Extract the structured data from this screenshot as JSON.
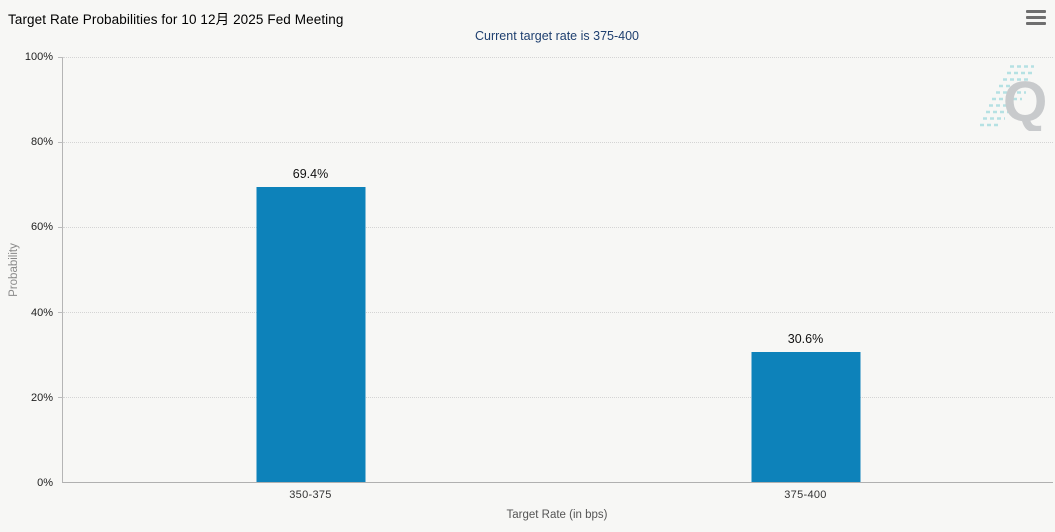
{
  "header": {
    "title": "Target Rate Probabilities for 10 12月 2025 Fed Meeting",
    "subtitle": "Current target rate is 375-400",
    "menu_icon": "hamburger-menu-icon"
  },
  "watermark": {
    "letter": "Q"
  },
  "colors": {
    "background": "#f7f7f5",
    "bar": "#0d82ba",
    "subtitle_text": "#1e3f6f",
    "gridline": "#d4d4d4",
    "axis_line": "#b5b5b5",
    "watermark_gray": "#c8cacc",
    "watermark_teal": "#9ad8dc"
  },
  "chart_data": {
    "type": "bar",
    "title": "Target Rate Probabilities for 10 12月 2025 Fed Meeting",
    "subtitle": "Current target rate is 375-400",
    "categories": [
      "350-375",
      "375-400"
    ],
    "values": [
      69.4,
      30.6
    ],
    "value_labels": [
      "69.4%",
      "30.6%"
    ],
    "xlabel": "Target Rate (in bps)",
    "ylabel": "Probability",
    "ylim": [
      0,
      100
    ],
    "yticks": [
      0,
      20,
      40,
      60,
      80,
      100
    ],
    "ytick_labels": [
      "0%",
      "20%",
      "40%",
      "60%",
      "80%",
      "100%"
    ],
    "legend": false,
    "grid": "horizontal-dotted",
    "bar_color": "#0d82ba"
  }
}
